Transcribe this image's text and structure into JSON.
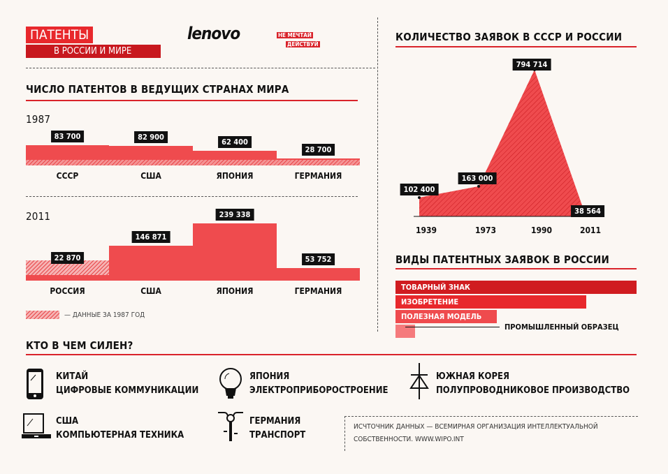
{
  "header": {
    "title": "ПАТЕНТЫ",
    "subtitle": "В РОССИИ И МИРЕ",
    "logo": "lenovo",
    "slogan1": "НЕ МЕЧТАЙ",
    "slogan2": "ДЕЙСТВУЙ"
  },
  "colors": {
    "accent": "#d9232a",
    "bar": "#ef4b4e",
    "background": "#fbf7f3"
  },
  "chart_data": [
    {
      "type": "bar",
      "title": "ЧИСЛО ПАТЕНТОВ В ВЕДУЩИХ СТРАНАХ МИРА",
      "year": "1987",
      "categories": [
        "СССР",
        "США",
        "ЯПОНИЯ",
        "ГЕРМАНИЯ"
      ],
      "values": [
        83700,
        82900,
        62400,
        28700
      ],
      "labels": [
        "83 700",
        "82 900",
        "62 400",
        "28 700"
      ]
    },
    {
      "type": "bar",
      "year": "2011",
      "categories": [
        "РОССИЯ",
        "США",
        "ЯПОНИЯ",
        "ГЕРМАНИЯ"
      ],
      "values": [
        22870,
        146871,
        239338,
        53752
      ],
      "labels": [
        "22 870",
        "146 871",
        "239 338",
        "53 752"
      ],
      "reference_1987": [
        83700,
        82900,
        62400,
        28700
      ],
      "legend": "— ДАННЫЕ ЗА 1987 ГОД"
    },
    {
      "type": "area",
      "title": "КОЛИЧЕСТВО ЗАЯВОК В СССР И РОССИИ",
      "x": [
        "1939",
        "1973",
        "1990",
        "2011"
      ],
      "values": [
        102400,
        163000,
        794714,
        38564
      ],
      "labels": [
        "102 400",
        "163 000",
        "794 714",
        "38 564"
      ]
    },
    {
      "type": "bar",
      "orientation": "horizontal",
      "title": "ВИДЫ ПАТЕНТНЫХ ЗАЯВОК В РОССИИ",
      "categories": [
        "ТОВАРНЫЙ ЗНАК",
        "ИЗОБРЕТЕНИЕ",
        "ПОЛЕЗНАЯ МОДЕЛЬ",
        "ПРОМЫШЛЕННЫЙ ОБРАЗЕЦ"
      ],
      "relative_percent": [
        100,
        79,
        42,
        8
      ],
      "colors": [
        "#d01c20",
        "#e8282c",
        "#ef4b4e",
        "#f57a7c"
      ]
    }
  ],
  "skills": {
    "title": "КТО В ЧЕМ СИЛЕН?",
    "items": [
      {
        "country": "КИТАЙ",
        "field": "ЦИФРОВЫЕ КОММУНИКАЦИИ",
        "icon": "tablet-icon"
      },
      {
        "country": "ЯПОНИЯ",
        "field": "ЭЛЕКТРОПРИБОРОСТРОЕНИЕ",
        "icon": "lightbulb-icon"
      },
      {
        "country": "ЮЖНАЯ КОРЕЯ",
        "field": "ПОЛУПРОВОДНИКОВОЕ ПРОИЗВОДСТВО",
        "icon": "diode-icon"
      },
      {
        "country": "США",
        "field": "КОМПЬЮТЕРНАЯ ТЕХНИКА",
        "icon": "laptop-icon"
      },
      {
        "country": "ГЕРМАНИЯ",
        "field": "ТРАНСПОРТ",
        "icon": "bicycle-icon"
      }
    ]
  },
  "source": {
    "line1": "ИСЧТОЧНИК ДАННЫХ — ВСЕМИРНАЯ ОРГАНИЗАЦИЯ ИНТЕЛЛЕКТУАЛЬНОЙ",
    "line2": "СОБСТВЕННОСТИ.  WWW.WIPO.INT"
  }
}
